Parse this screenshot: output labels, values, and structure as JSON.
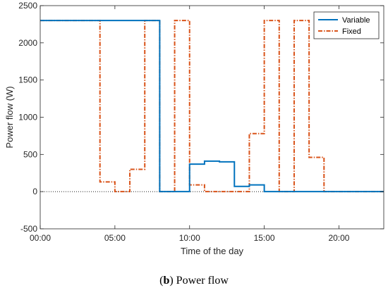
{
  "chart_data": {
    "type": "line",
    "xlabel": "Time of the day",
    "ylabel": "Power flow (W)",
    "xlim": [
      0,
      23
    ],
    "ylim": [
      -500,
      2500
    ],
    "xticks": [
      0,
      5,
      10,
      15,
      20
    ],
    "xtick_labels": [
      "00:00",
      "05:00",
      "10:00",
      "15:00",
      "20:00"
    ],
    "yticks": [
      -500,
      0,
      500,
      1000,
      1500,
      2000,
      2500
    ],
    "grid": false,
    "legend_position": "top-right",
    "zero_reference_line": true,
    "series": [
      {
        "name": "Variable",
        "style": "solid",
        "color": "#0072BD",
        "x": [
          0,
          8,
          8,
          10,
          10,
          11,
          11,
          12,
          12,
          13,
          13,
          14,
          14,
          15,
          15,
          16,
          16,
          23
        ],
        "y": [
          2300,
          2300,
          0,
          0,
          370,
          370,
          410,
          410,
          400,
          400,
          70,
          70,
          90,
          90,
          0,
          0,
          0,
          0
        ]
      },
      {
        "name": "Fixed",
        "style": "dash-dot",
        "color": "#D95319",
        "x": [
          0,
          4,
          4,
          5,
          5,
          6,
          6,
          7,
          7,
          8,
          8,
          9,
          9,
          10,
          10,
          11,
          11,
          14,
          14,
          15,
          15,
          16,
          16,
          17,
          17,
          18,
          18,
          19,
          19,
          23
        ],
        "y": [
          2300,
          2300,
          130,
          130,
          0,
          0,
          300,
          300,
          2300,
          2300,
          0,
          0,
          2300,
          2300,
          90,
          90,
          0,
          0,
          780,
          780,
          2300,
          2300,
          0,
          0,
          2300,
          2300,
          460,
          460,
          0,
          0
        ]
      }
    ]
  },
  "caption": {
    "label": "b",
    "text": "Power flow"
  }
}
